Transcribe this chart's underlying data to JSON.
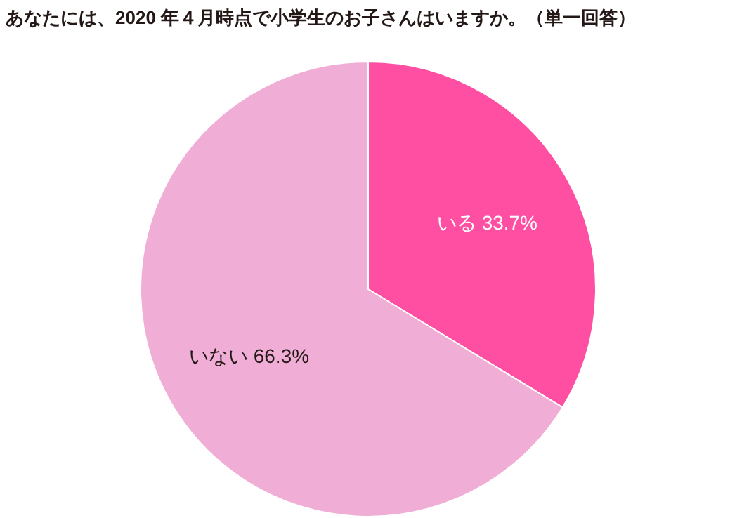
{
  "chart_data": {
    "type": "pie",
    "title": "あなたには、2020 年４月時点で小学生のお子さんはいますか。（単一回答）",
    "categories": [
      "いる",
      "いない"
    ],
    "values": [
      33.7,
      66.3
    ],
    "value_labels": [
      "33.7%",
      "66.3%"
    ],
    "colors": [
      "#fe4fa3",
      "#f0aed6"
    ],
    "legend": false
  }
}
